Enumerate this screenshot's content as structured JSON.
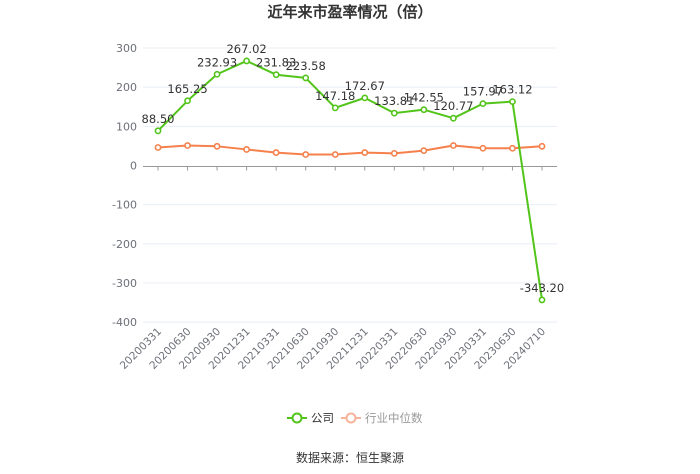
{
  "title": "近年来市盈率情况（倍）",
  "source": "数据来源：恒生聚源",
  "colors": {
    "company": "#52c41a",
    "industry": "#f5804b",
    "industry_legend": "#f7b39a",
    "grid": "#e8edf6",
    "axis": "#999999"
  },
  "legend": [
    {
      "name": "公司",
      "color": "#52c41a"
    },
    {
      "name": "行业中位数",
      "color": "#f7b39a"
    }
  ],
  "chart_data": {
    "type": "line",
    "title": "近年来市盈率情况（倍）",
    "xlabel": "",
    "ylabel": "",
    "ylim": [
      -400,
      300
    ],
    "yticks": [
      300,
      200,
      100,
      0,
      -100,
      -200,
      -300,
      -400
    ],
    "grid": true,
    "legend_position": "bottom",
    "categories": [
      "20200331",
      "20200630",
      "20200930",
      "20201231",
      "20210331",
      "20210630",
      "20210930",
      "20211231",
      "20220331",
      "20220630",
      "20220930",
      "20230331",
      "20230630",
      "20240710"
    ],
    "series": [
      {
        "name": "公司",
        "values": [
          88.5,
          165.25,
          232.93,
          267.02,
          231.83,
          223.58,
          147.18,
          172.67,
          133.81,
          142.55,
          120.77,
          157.97,
          163.12,
          -343.2
        ],
        "labels": true
      },
      {
        "name": "行业中位数",
        "values": [
          46,
          51,
          49,
          41,
          33,
          28,
          28,
          33,
          31,
          38,
          51,
          44,
          44,
          49
        ],
        "labels": false
      }
    ]
  }
}
